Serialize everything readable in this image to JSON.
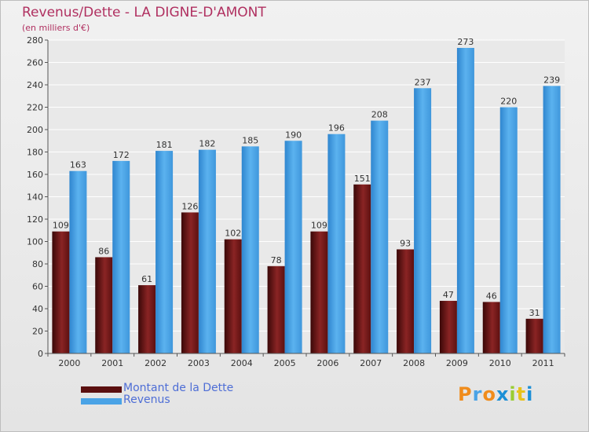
{
  "header": {
    "title": "Revenus/Dette - LA DIGNE-D'AMONT",
    "subtitle": "(en milliers d'€)"
  },
  "chart_data": {
    "type": "bar",
    "title": "Revenus/Dette - LA DIGNE-D'AMONT",
    "subtitle": "(en milliers d'€)",
    "categories": [
      "2000",
      "2001",
      "2002",
      "2003",
      "2004",
      "2005",
      "2006",
      "2007",
      "2008",
      "2009",
      "2010",
      "2011"
    ],
    "series": [
      {
        "name": "Montant de la Dette",
        "values": [
          109,
          86,
          61,
          126,
          102,
          78,
          109,
          151,
          93,
          47,
          46,
          31
        ],
        "color": "#7a1a1a"
      },
      {
        "name": "Revenus",
        "values": [
          163,
          172,
          181,
          182,
          185,
          190,
          196,
          208,
          237,
          273,
          220,
          239
        ],
        "color": "#4aa3e6"
      }
    ],
    "ylim": [
      0,
      280
    ],
    "yticks": [
      0,
      20,
      40,
      60,
      80,
      100,
      120,
      140,
      160,
      180,
      200,
      220,
      240,
      260,
      280
    ],
    "grid": true,
    "legend_position": "bottom-left"
  },
  "legend": {
    "items": [
      {
        "label": "Montant de la Dette",
        "color": "#5a0f0f"
      },
      {
        "label": "Revenus",
        "color": "#4aa3e6"
      }
    ]
  },
  "logo": {
    "text": "Proxiti",
    "letter_colors": [
      "#f08c1c",
      "#4aa3e6",
      "#f08c1c",
      "#1c8fd6",
      "#9acd32",
      "#e8c21c",
      "#1c8fd6"
    ]
  }
}
